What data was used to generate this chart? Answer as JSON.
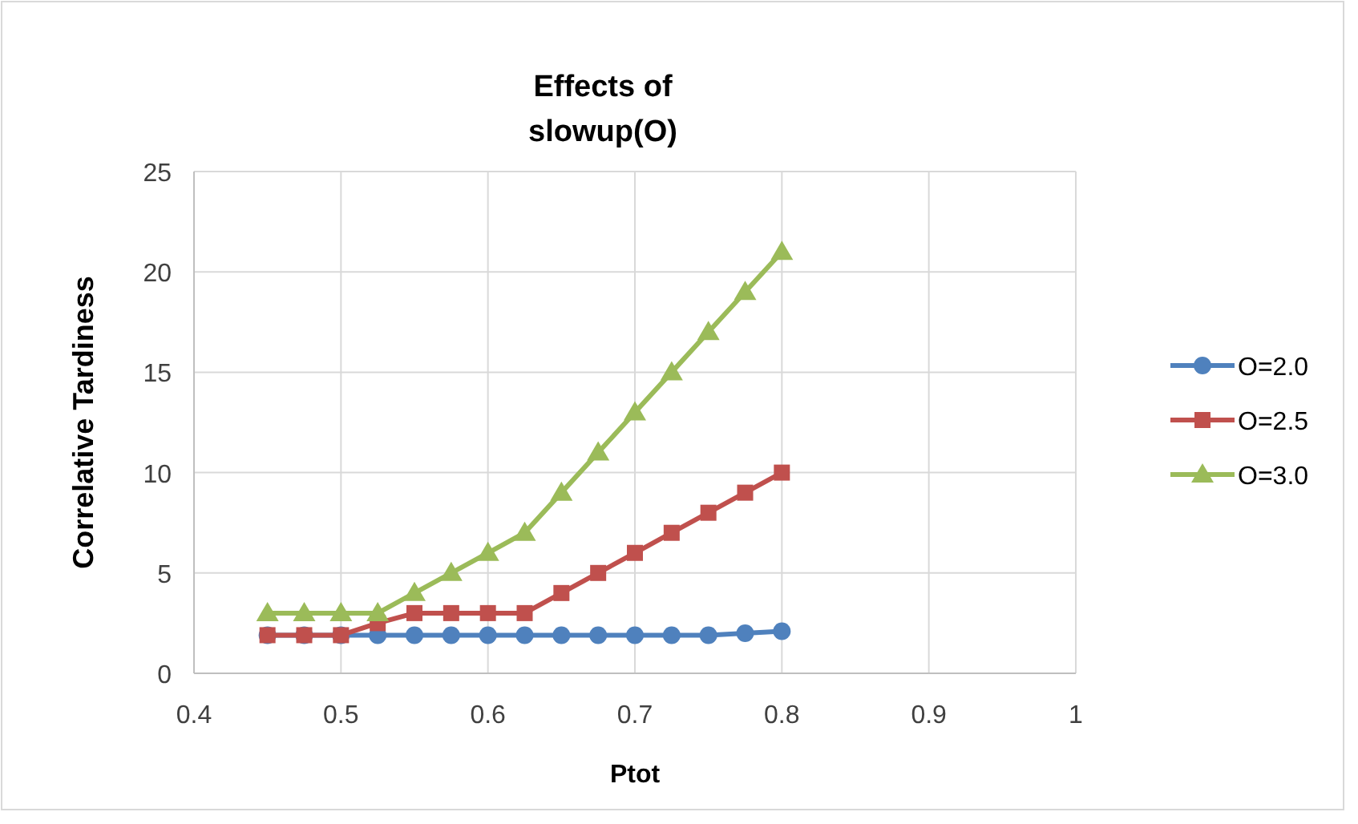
{
  "chart_data": {
    "type": "line",
    "title": "Effects of\nslowup(O)",
    "xlabel": "Ptot",
    "ylabel": "Correlative Tardiness",
    "x": [
      0.45,
      0.475,
      0.5,
      0.525,
      0.55,
      0.575,
      0.6,
      0.625,
      0.65,
      0.675,
      0.7,
      0.725,
      0.75,
      0.775,
      0.8
    ],
    "series": [
      {
        "name": "O=2.0",
        "color": "#4f81bd",
        "marker": "circle",
        "values": [
          1.9,
          1.9,
          1.9,
          1.9,
          1.9,
          1.9,
          1.9,
          1.9,
          1.9,
          1.9,
          1.9,
          1.9,
          1.9,
          2.0,
          2.1
        ]
      },
      {
        "name": "O=2.5",
        "color": "#c0504d",
        "marker": "square",
        "values": [
          1.9,
          1.9,
          1.9,
          2.5,
          3,
          3,
          3,
          3,
          4,
          5,
          6,
          7,
          8,
          9,
          10
        ]
      },
      {
        "name": "O=3.0",
        "color": "#9bbb59",
        "marker": "triangle",
        "values": [
          3,
          3,
          3,
          3,
          4,
          5,
          6,
          7,
          9,
          11,
          13,
          15,
          17,
          19,
          21
        ]
      }
    ],
    "xlim": [
      0.4,
      1
    ],
    "xticks": [
      0.4,
      0.5,
      0.6,
      0.7,
      0.8,
      0.9,
      1
    ],
    "ylim": [
      0,
      25
    ],
    "yticks": [
      0,
      5,
      10,
      15,
      20,
      25
    ],
    "grid": true,
    "legend": "right"
  }
}
